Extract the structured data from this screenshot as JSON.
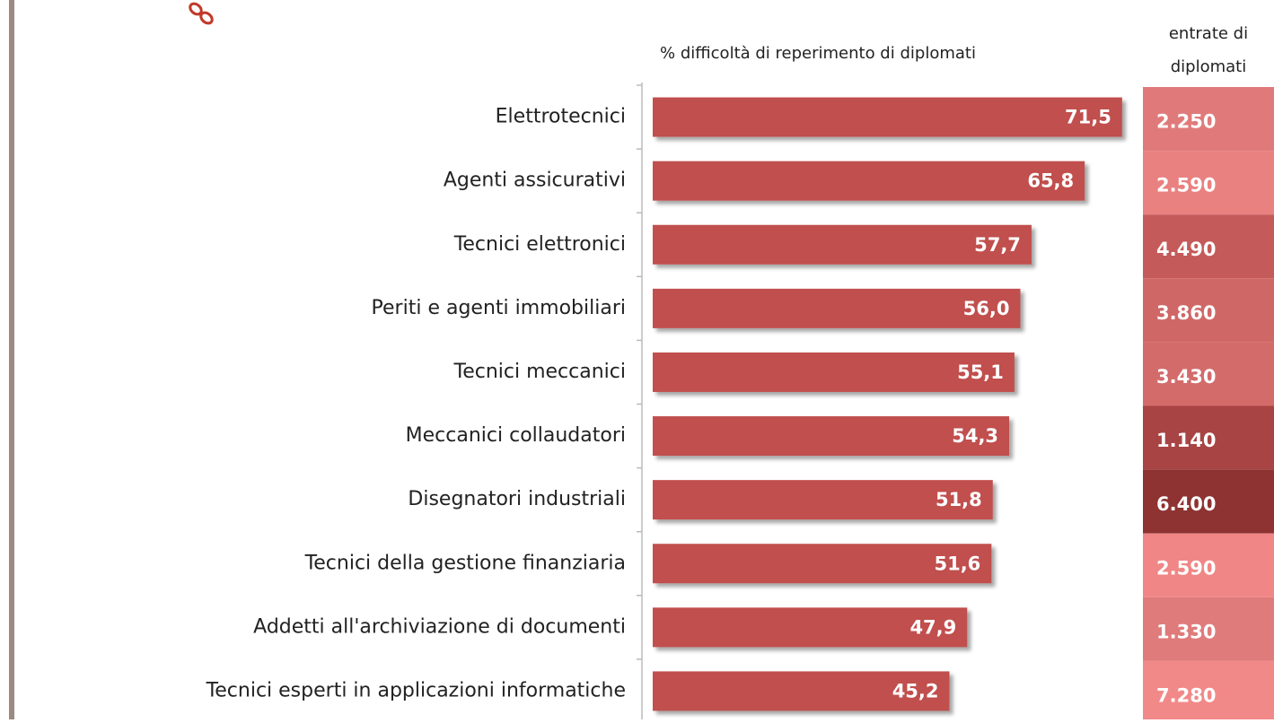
{
  "chart_data": {
    "type": "bar",
    "orientation": "horizontal",
    "title": "% difficoltà di reperimento di diplomati",
    "categories": [
      "Elettrotecnici",
      "Agenti assicurativi",
      "Tecnici elettronici",
      "Periti e agenti immobiliari",
      "Tecnici meccanici",
      "Meccanici collaudatori",
      "Disegnatori industriali",
      "Tecnici della gestione finanziaria",
      "Addetti all'archiviazione di documenti",
      "Tecnici esperti in applicazioni informatiche"
    ],
    "values": [
      71.5,
      65.8,
      57.7,
      56.0,
      55.1,
      54.3,
      51.8,
      51.6,
      47.9,
      45.2
    ],
    "value_labels": [
      "71,5",
      "65,8",
      "57,7",
      "56,0",
      "55,1",
      "54,3",
      "51,8",
      "51,6",
      "47,9",
      "45,2"
    ],
    "color": "#c0504d",
    "xlim": [
      0,
      80
    ],
    "table": {
      "title": [
        "entrate di",
        "diplomati"
      ],
      "values": [
        2250,
        2590,
        4490,
        3860,
        3430,
        1140,
        6400,
        2590,
        1330,
        7280
      ],
      "value_labels": [
        "2.250",
        "2.590",
        "4.490",
        "3.860",
        "3.430",
        "1.140",
        "6.400",
        "2.590",
        "1.330",
        "7.280"
      ],
      "colors": [
        "#e07a7a",
        "#e98181",
        "#c55a5a",
        "#d06767",
        "#d36b6b",
        "#a84444",
        "#8e3232",
        "#f08686",
        "#e07b7b",
        "#f28989"
      ]
    }
  }
}
